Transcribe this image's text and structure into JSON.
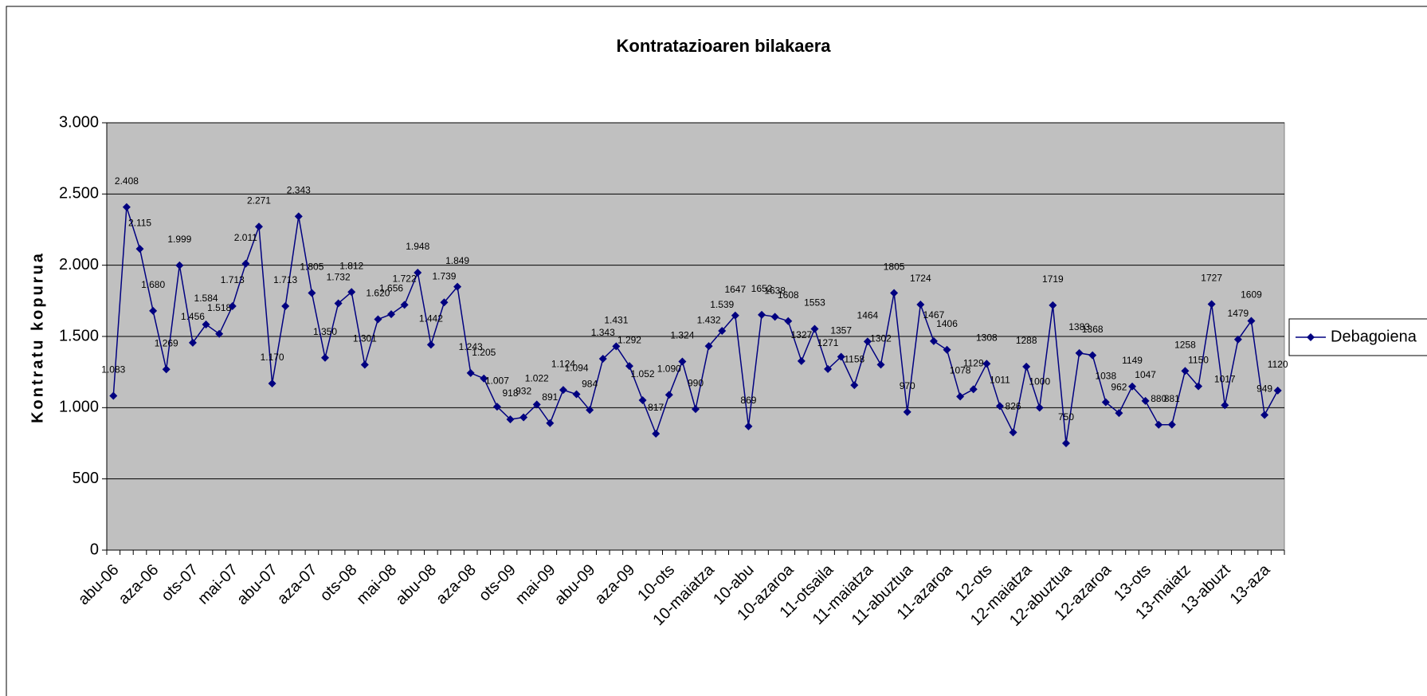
{
  "chart_data": {
    "type": "line",
    "title": "Kontratazioaren bilakaera",
    "y_label": "Kontratu kopurua",
    "categories": [
      "abu-06",
      null,
      null,
      "aza-06",
      null,
      null,
      "ots-07",
      null,
      null,
      "mai-07",
      null,
      null,
      "abu-07",
      null,
      null,
      "aza-07",
      null,
      null,
      "ots-08",
      null,
      null,
      "mai-08",
      null,
      null,
      "abu-08",
      null,
      null,
      "aza-08",
      null,
      null,
      "ots-09",
      null,
      null,
      "mai-09",
      null,
      null,
      "abu-09",
      null,
      null,
      "aza-09",
      null,
      null,
      "10-ots",
      null,
      null,
      "10-maiatza",
      null,
      null,
      "10-abu",
      null,
      null,
      "10-azaroa",
      null,
      null,
      "11-otsaila",
      null,
      null,
      "11-maiatza",
      null,
      null,
      "11-abuztua",
      null,
      null,
      "11-azaroa",
      null,
      null,
      "12-ots",
      null,
      null,
      "12-maiatza",
      null,
      null,
      "12-abuztua",
      null,
      null,
      "12-azaroa",
      null,
      null,
      "13-ots",
      null,
      null,
      "13-maiatz",
      null,
      null,
      "13-abuzt",
      null,
      null,
      "13-aza",
      null
    ],
    "series": [
      {
        "name": "Debagoiena",
        "color": "#000080",
        "values": [
          1083,
          2408,
          2115,
          1680,
          1269,
          1999,
          1456,
          1584,
          1518,
          1713,
          2011,
          2271,
          1170,
          1713,
          2343,
          1805,
          1350,
          1732,
          1812,
          1301,
          1620,
          1656,
          1722,
          1948,
          1442,
          1739,
          1849,
          1243,
          1205,
          1007,
          918,
          932,
          1022,
          891,
          1124,
          1094,
          984,
          1343,
          1431,
          1292,
          1052,
          817,
          1090,
          1324,
          990,
          1432,
          1539,
          1647,
          869,
          1652,
          1638,
          1608,
          1327,
          1553,
          1271,
          1357,
          1158,
          1464,
          1302,
          1805,
          970,
          1724,
          1467,
          1406,
          1078,
          1129,
          1308,
          1011,
          826,
          1288,
          1000,
          1719,
          750,
          1383,
          1368,
          1038,
          962,
          1149,
          1047,
          880,
          881,
          1258,
          1150,
          1727,
          1017,
          1479,
          1609,
          949,
          1120
        ],
        "value_labels": [
          "1.083",
          "2.408",
          "2.115",
          "1.680",
          "1.269",
          "1.999",
          "1.456",
          "1.584",
          "1.518",
          "1.713",
          "2.011",
          "2.271",
          "1.170",
          "1.713",
          "2.343",
          "1.805",
          "1.350",
          "1.732",
          "1.812",
          "1.301",
          "1.620",
          "1.656",
          "1.722",
          "1.948",
          "1.442",
          "1.739",
          "1.849",
          "1.243",
          "1.205",
          "1.007",
          "918",
          "932",
          "1.022",
          "891",
          "1.124",
          "1.094",
          "984",
          "1.343",
          "1.431",
          "1.292",
          "1.052",
          "817",
          "1.090",
          "1.324",
          "990",
          "1.432",
          "1.539",
          "1647",
          "869",
          "1652",
          "1638",
          "1608",
          "1327",
          "1553",
          "1271",
          "1357",
          "1158",
          "1464",
          "1302",
          "1805",
          "970",
          "1724",
          "1467",
          "1406",
          "1078",
          "1129",
          "1308",
          "1011",
          "826",
          "1288",
          "1000",
          "1719",
          "750",
          "1383",
          "1368",
          "1038",
          "962",
          "1149",
          "1047",
          "880",
          "881",
          "1258",
          "1150",
          "1727",
          "1017",
          "1479",
          "1609",
          "949",
          "1120"
        ]
      }
    ],
    "ylim": [
      0,
      3000
    ],
    "yticks": [
      0,
      500,
      {
        "value": 1000,
        "label": "1.000"
      },
      {
        "value": 1500,
        "label": "1.500"
      },
      {
        "value": 2000,
        "label": "2.000"
      },
      {
        "value": 2500,
        "label": "2.500"
      },
      {
        "value": 3000,
        "label": "3.000"
      }
    ],
    "grid": true,
    "legend": "right"
  }
}
